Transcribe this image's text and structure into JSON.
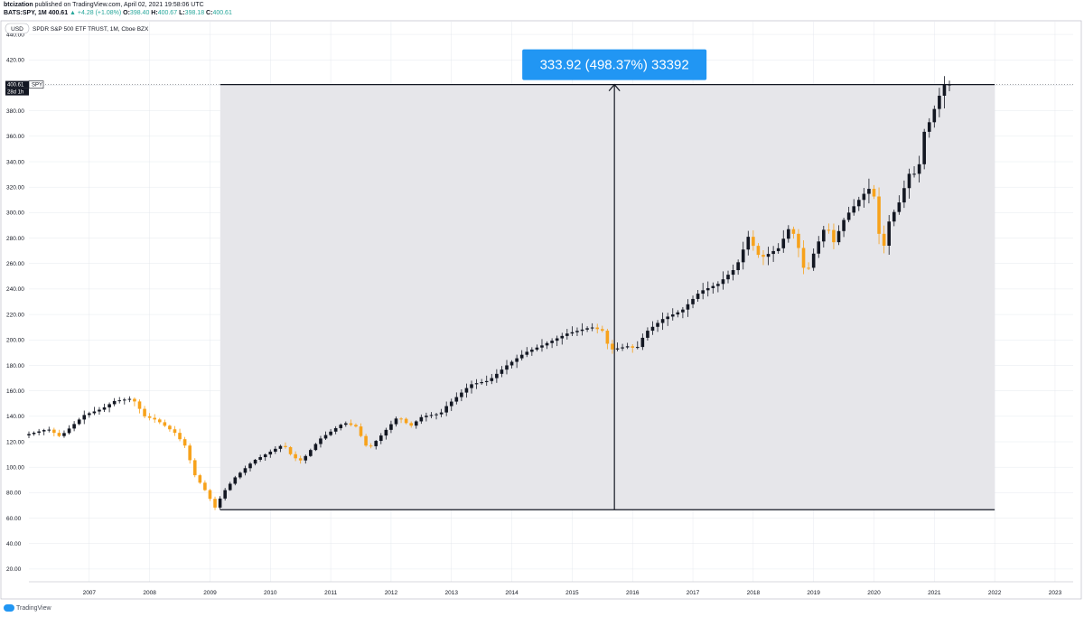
{
  "header": {
    "publisher": "btcization",
    "published_text": "published on TradingView.com, April 02, 2021 19:58:06 UTC",
    "symbol_line": "BATS:SPY, 1M",
    "last": "400.61",
    "change": "▲ +4.28 (+1.08%)",
    "open_label": "O:",
    "open": "398.40",
    "high_label": "H:",
    "high": "400.67",
    "low_label": "L:",
    "low": "398.18",
    "close_label": "C:",
    "close": "400.61"
  },
  "currency_badge": "USD",
  "instrument_title": "SPDR S&P 500 ETF TRUST, 1M, Cboe BZX",
  "price_tag": {
    "value": "400.61",
    "symbol": "SPY",
    "countdown": "28d 1h"
  },
  "measure_label": "333.92 (498.37%) 33392",
  "footer": {
    "brand": "TradingView"
  },
  "colors": {
    "up": "#131722",
    "down": "#f7a21b",
    "measure_fill": "#e6e6ea",
    "measure_label_bg": "#2196f3",
    "grid": "#e0e3eb",
    "bullish_text": "#26a69a"
  },
  "chart_data": {
    "type": "candlestick",
    "title": "SPDR S&P 500 ETF TRUST, 1M, Cboe BZX",
    "ylim": [
      10,
      450
    ],
    "xlim": [
      2006.0,
      2023.3
    ],
    "y_ticks": [
      "440.00",
      "420.00",
      "400.00",
      "380.00",
      "360.00",
      "340.00",
      "320.00",
      "300.00",
      "280.00",
      "260.00",
      "240.00",
      "220.00",
      "200.00",
      "180.00",
      "160.00",
      "140.00",
      "120.00",
      "100.00",
      "80.00",
      "60.00",
      "40.00",
      "20.00"
    ],
    "x_ticks": [
      "2007",
      "2008",
      "2009",
      "2010",
      "2011",
      "2012",
      "2013",
      "2014",
      "2015",
      "2016",
      "2017",
      "2018",
      "2019",
      "2020",
      "2021",
      "2022",
      "2023"
    ],
    "measure": {
      "low": 66.6,
      "high": 400.61,
      "change": 333.92,
      "change_pct": 498.37,
      "ticks": 33392,
      "x_start": 2009.17,
      "x_end": 2022.0,
      "x_arrow": 2015.7
    },
    "ohlc_anchors": [
      [
        2006.0,
        125
      ],
      [
        2006.4,
        130
      ],
      [
        2006.6,
        124
      ],
      [
        2007.0,
        141
      ],
      [
        2007.3,
        146
      ],
      [
        2007.5,
        152
      ],
      [
        2007.8,
        154
      ],
      [
        2008.0,
        140
      ],
      [
        2008.2,
        137
      ],
      [
        2008.5,
        127
      ],
      [
        2008.7,
        115
      ],
      [
        2008.8,
        96
      ],
      [
        2009.0,
        82
      ],
      [
        2009.17,
        68
      ],
      [
        2009.3,
        80
      ],
      [
        2009.5,
        92
      ],
      [
        2009.8,
        105
      ],
      [
        2010.0,
        110
      ],
      [
        2010.3,
        118
      ],
      [
        2010.45,
        108
      ],
      [
        2010.6,
        105
      ],
      [
        2010.9,
        122
      ],
      [
        2011.3,
        135
      ],
      [
        2011.5,
        132
      ],
      [
        2011.7,
        114
      ],
      [
        2011.9,
        124
      ],
      [
        2012.2,
        140
      ],
      [
        2012.4,
        132
      ],
      [
        2012.6,
        140
      ],
      [
        2012.9,
        142
      ],
      [
        2013.0,
        148
      ],
      [
        2013.4,
        165
      ],
      [
        2013.7,
        168
      ],
      [
        2014.0,
        180
      ],
      [
        2014.3,
        190
      ],
      [
        2014.6,
        196
      ],
      [
        2015.0,
        205
      ],
      [
        2015.4,
        210
      ],
      [
        2015.6,
        207
      ],
      [
        2015.7,
        192
      ],
      [
        2016.0,
        195
      ],
      [
        2016.15,
        193
      ],
      [
        2016.3,
        206
      ],
      [
        2016.6,
        217
      ],
      [
        2016.9,
        223
      ],
      [
        2017.2,
        238
      ],
      [
        2017.5,
        244
      ],
      [
        2017.8,
        257
      ],
      [
        2018.0,
        281
      ],
      [
        2018.2,
        264
      ],
      [
        2018.5,
        272
      ],
      [
        2018.7,
        290
      ],
      [
        2018.85,
        270
      ],
      [
        2018.95,
        250
      ],
      [
        2019.1,
        270
      ],
      [
        2019.3,
        292
      ],
      [
        2019.4,
        275
      ],
      [
        2019.6,
        296
      ],
      [
        2019.9,
        314
      ],
      [
        2020.05,
        321
      ],
      [
        2020.15,
        296
      ],
      [
        2020.2,
        258
      ],
      [
        2020.3,
        290
      ],
      [
        2020.5,
        308
      ],
      [
        2020.7,
        335
      ],
      [
        2020.8,
        326
      ],
      [
        2020.9,
        362
      ],
      [
        2021.0,
        371
      ],
      [
        2021.2,
        396
      ],
      [
        2021.25,
        400.61
      ]
    ]
  }
}
